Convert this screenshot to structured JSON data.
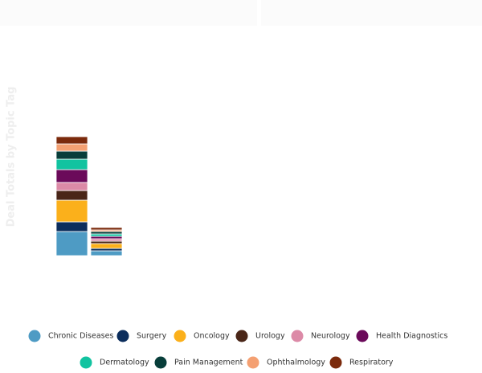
{
  "chart_data": {
    "type": "bar",
    "stacked": true,
    "y_label": "Deal Totals by Topic Tag",
    "categories": [
      null,
      null
    ],
    "ylim": [
      0,
      200
    ],
    "series": [
      {
        "name": "Chronic Diseases",
        "color": "#4e9bc4",
        "values": [
          30,
          6
        ]
      },
      {
        "name": "Surgery",
        "color": "#0b2d5c",
        "values": [
          12,
          3
        ]
      },
      {
        "name": "Oncology",
        "color": "#fbb01b",
        "values": [
          27,
          6
        ]
      },
      {
        "name": "Urology",
        "color": "#4a2618",
        "values": [
          12,
          3
        ]
      },
      {
        "name": "Neurology",
        "color": "#dc8aa7",
        "values": [
          10,
          3
        ]
      },
      {
        "name": "Health Diagnostics",
        "color": "#6b0a5a",
        "values": [
          16,
          3
        ]
      },
      {
        "name": "Dermatology",
        "color": "#12c3a0",
        "values": [
          13,
          3
        ]
      },
      {
        "name": "Pain Management",
        "color": "#083e3a",
        "values": [
          10,
          3
        ]
      },
      {
        "name": "Ophthalmology",
        "color": "#f4a072",
        "values": [
          9,
          2
        ]
      },
      {
        "name": "Respiratory",
        "color": "#7b2a0c",
        "values": [
          9,
          3
        ]
      }
    ]
  }
}
